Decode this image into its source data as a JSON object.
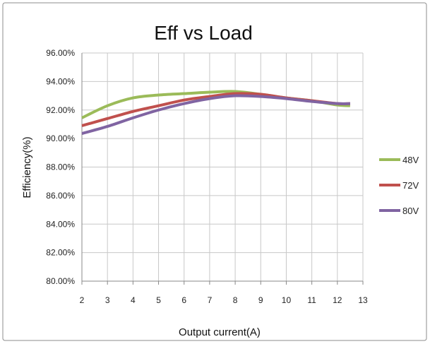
{
  "chart_data": {
    "type": "line",
    "title": "Eff vs Load",
    "xlabel": "Output current(A)",
    "ylabel": "Efficiency(%)",
    "xlim": [
      2,
      13
    ],
    "ylim": [
      80,
      96
    ],
    "x_ticks": [
      2,
      3,
      4,
      5,
      6,
      7,
      8,
      9,
      10,
      11,
      12,
      13
    ],
    "y_ticks": [
      "96.00%",
      "94.00%",
      "92.00%",
      "90.00%",
      "88.00%",
      "86.00%",
      "84.00%",
      "82.00%",
      "80.00%"
    ],
    "grid": true,
    "legend_position": "right",
    "series": [
      {
        "name": "48V",
        "color": "#9bbb59",
        "x": [
          2,
          3,
          4,
          5,
          6,
          7,
          8,
          9,
          10,
          11,
          12,
          12.5
        ],
        "y": [
          91.45,
          92.3,
          92.85,
          93.05,
          93.15,
          93.25,
          93.3,
          93.1,
          92.85,
          92.65,
          92.35,
          92.3
        ]
      },
      {
        "name": "72V",
        "color": "#c0504d",
        "x": [
          2,
          3,
          4,
          5,
          6,
          7,
          8,
          9,
          10,
          11,
          12,
          12.5
        ],
        "y": [
          90.9,
          91.4,
          91.9,
          92.3,
          92.7,
          92.95,
          93.15,
          93.1,
          92.85,
          92.65,
          92.45,
          92.45
        ]
      },
      {
        "name": "80V",
        "color": "#8064a2",
        "x": [
          2,
          3,
          4,
          5,
          6,
          7,
          8,
          9,
          10,
          11,
          12,
          12.5
        ],
        "y": [
          90.35,
          90.85,
          91.45,
          92.0,
          92.45,
          92.8,
          93.0,
          92.95,
          92.8,
          92.6,
          92.45,
          92.45
        ]
      }
    ]
  }
}
